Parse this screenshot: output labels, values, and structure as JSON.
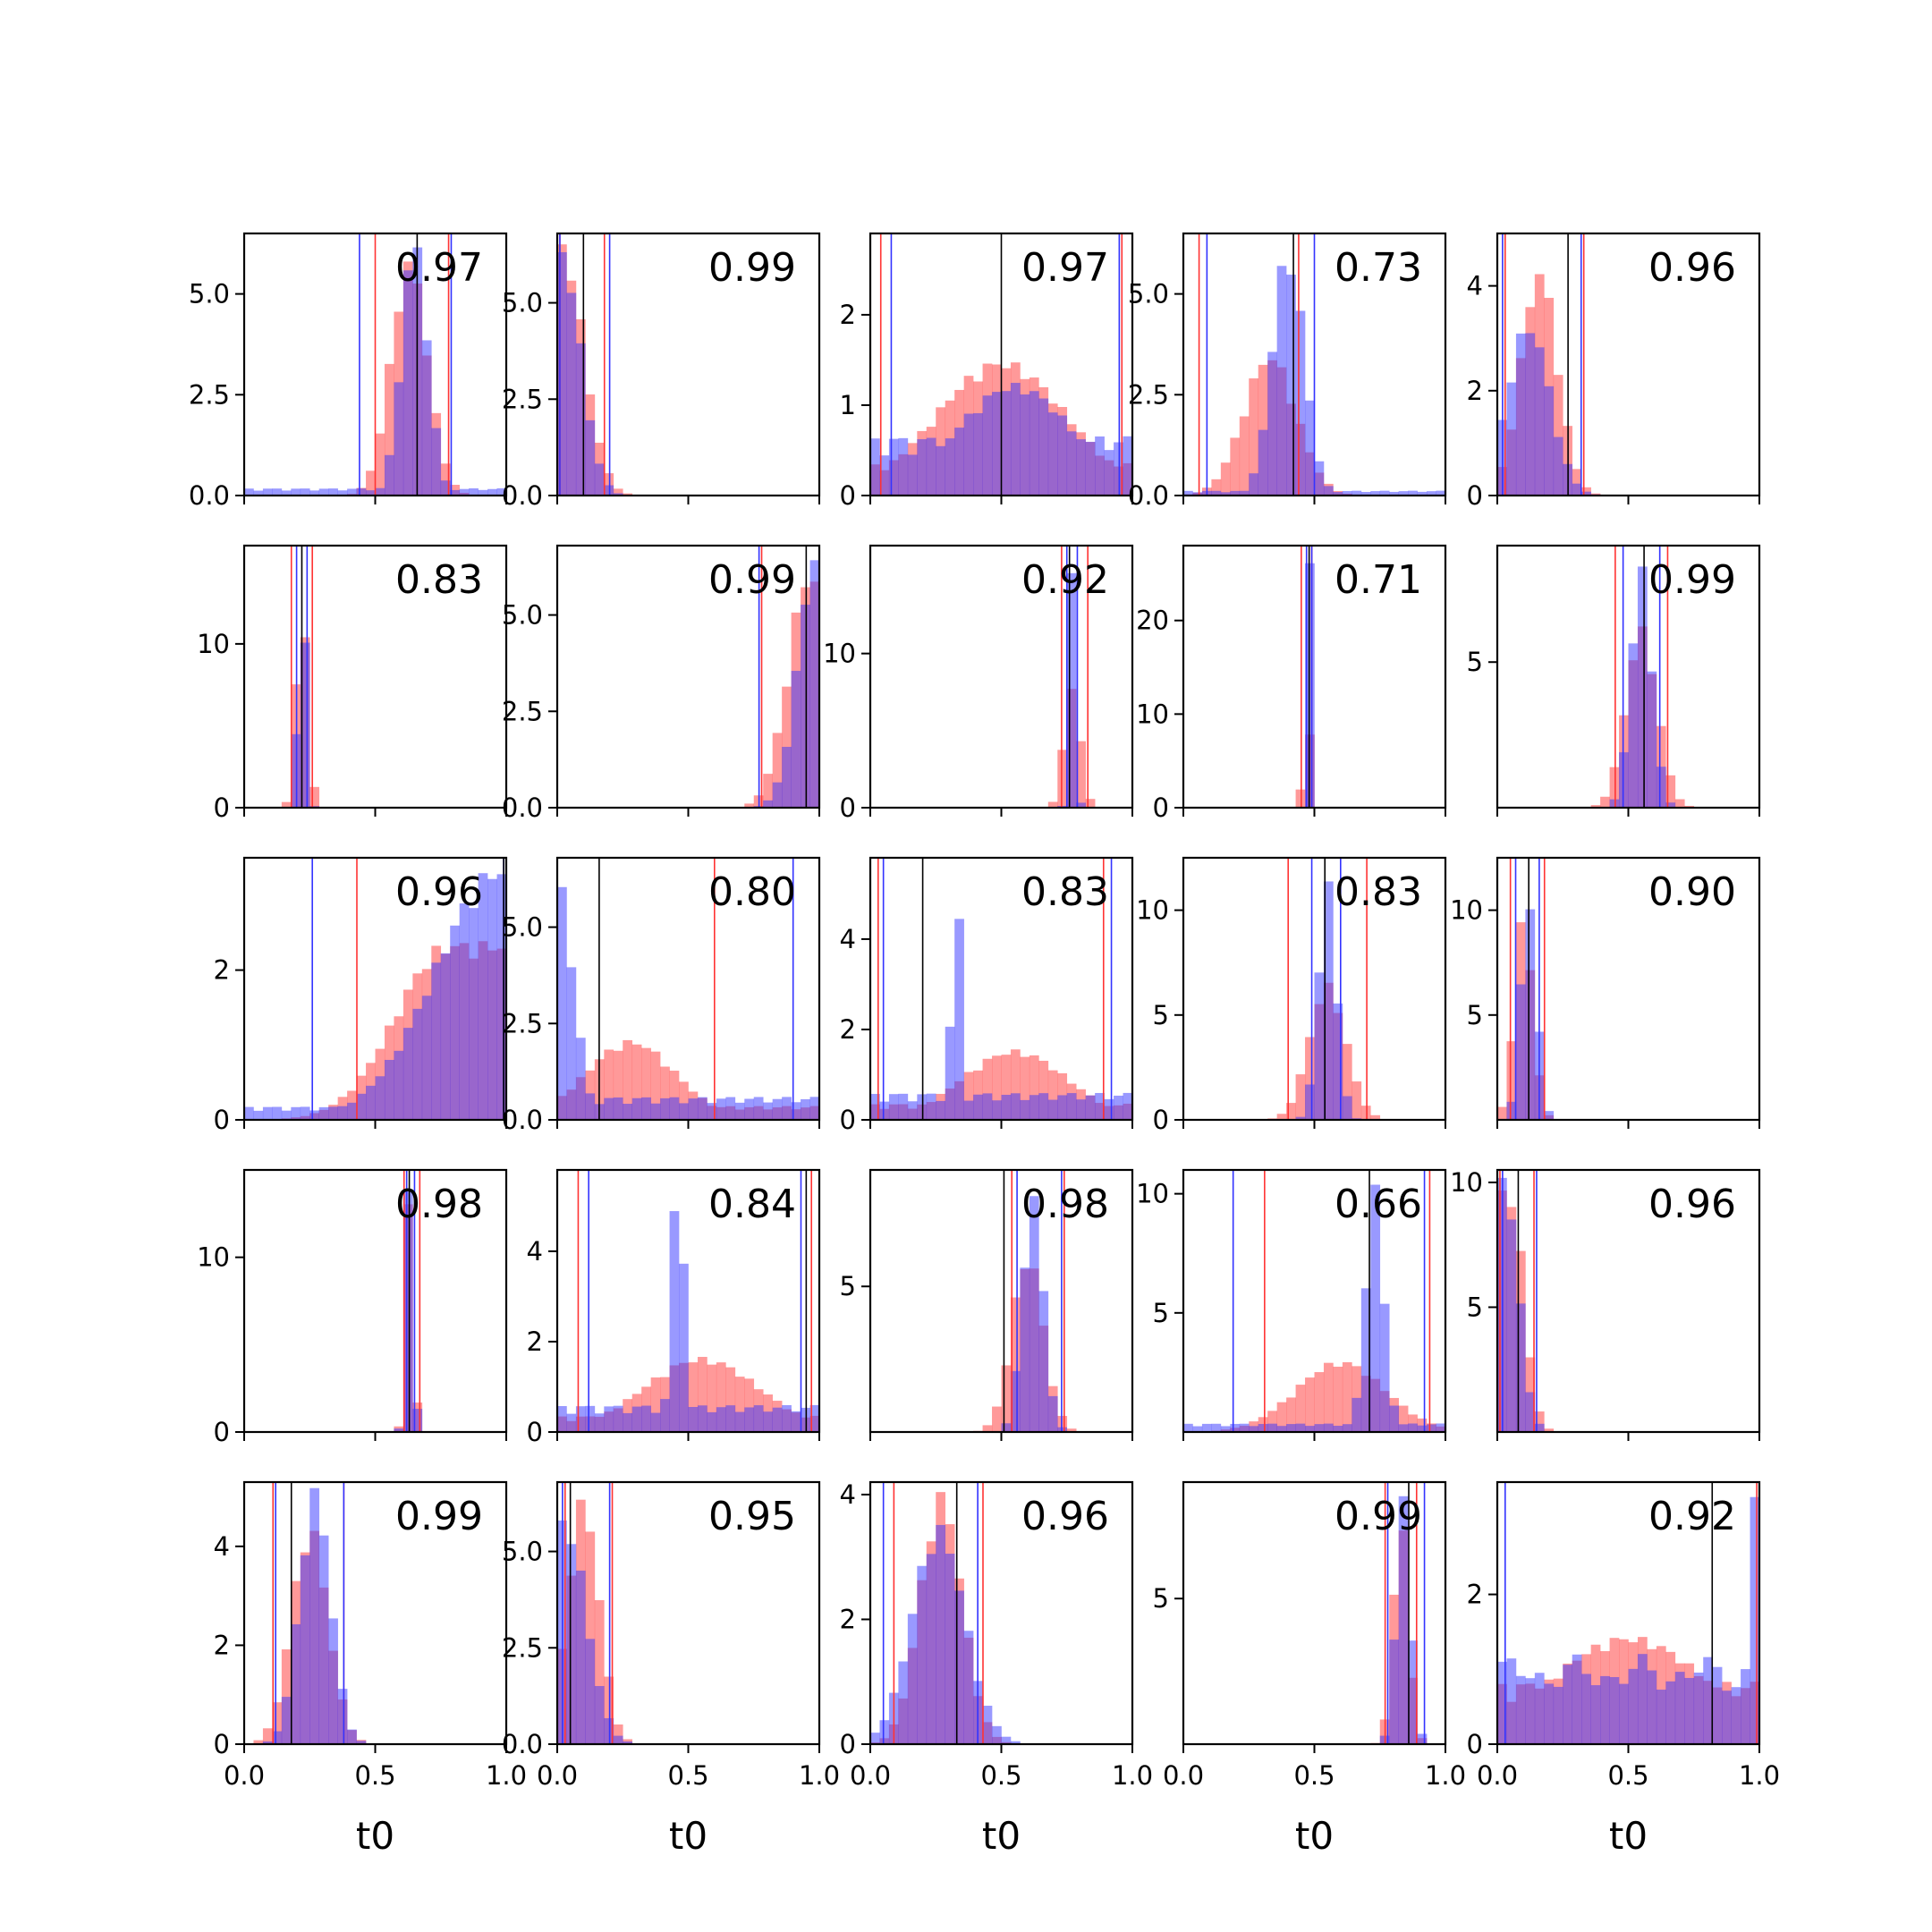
{
  "chart_data": {
    "type": "histogram-grid",
    "rows": 5,
    "cols": 5,
    "xlabel": "t0",
    "xlim": [
      0,
      1
    ],
    "xticks": [
      "0.0",
      "0.5",
      "1.0"
    ],
    "colors": {
      "series_a": "#ff3333",
      "series_b": "#3333ff",
      "overlap": "#7a33c2",
      "marker": "#000000"
    },
    "panels": [
      {
        "label": "0.97",
        "ylim": [
          0,
          6.5
        ],
        "yticks": [
          "0.0",
          "2.5",
          "5.0"
        ],
        "ytick_values": [
          0,
          2.5,
          5
        ],
        "red": {
          "type": "normal",
          "mu": 0.63,
          "sigma": 0.07,
          "peak": 5.7
        },
        "blue": {
          "type": "normal",
          "mu": 0.65,
          "sigma": 0.05,
          "peak": 6.2,
          "floor": 0.15
        },
        "vred": [
          0.5,
          0.78
        ],
        "vblue": [
          0.44,
          0.79
        ],
        "vblack": [
          0.66
        ]
      },
      {
        "label": "0.99",
        "ylim": [
          0,
          6.8
        ],
        "yticks": [
          "0.0",
          "2.5",
          "5.0"
        ],
        "ytick_values": [
          0,
          2.5,
          5
        ],
        "red": {
          "type": "halfnormal",
          "mu": 0.02,
          "sigma": 0.08,
          "peak": 6.4
        },
        "blue": {
          "type": "halfnormal",
          "mu": 0.02,
          "sigma": 0.07,
          "peak": 6.2
        },
        "vred": [
          0.01,
          0.18
        ],
        "vblue": [
          0.01,
          0.2
        ],
        "vblack": [
          0.1
        ]
      },
      {
        "label": "0.97",
        "ylim": [
          0,
          2.9
        ],
        "yticks": [
          "0",
          "1",
          "2"
        ],
        "ytick_values": [
          0,
          1,
          2
        ],
        "red": {
          "type": "normal",
          "mu": 0.5,
          "sigma": 0.25,
          "peak": 1.45,
          "floor": 0.3
        },
        "blue": {
          "type": "normal",
          "mu": 0.55,
          "sigma": 0.22,
          "peak": 1.2,
          "floor": 0.55
        },
        "vred": [
          0.04,
          0.96
        ],
        "vblue": [
          0.08,
          0.95
        ],
        "vblack": [
          0.5
        ]
      },
      {
        "label": "0.73",
        "ylim": [
          0,
          6.5
        ],
        "yticks": [
          "0.0",
          "2.5",
          "5.0"
        ],
        "ytick_values": [
          0,
          2.5,
          5
        ],
        "red": {
          "type": "normal",
          "mu": 0.33,
          "sigma": 0.1,
          "peak": 3.4
        },
        "blue": {
          "type": "normal",
          "mu": 0.4,
          "sigma": 0.06,
          "peak": 6.0,
          "floor": 0.1
        },
        "vred": [
          0.06,
          0.44
        ],
        "vblue": [
          0.09,
          0.5
        ],
        "vblack": [
          0.42
        ]
      },
      {
        "label": "0.96",
        "ylim": [
          0,
          5.0
        ],
        "yticks": [
          "0",
          "2",
          "4"
        ],
        "ytick_values": [
          0,
          2,
          4
        ],
        "red": {
          "type": "normal",
          "mu": 0.16,
          "sigma": 0.07,
          "peak": 4.2
        },
        "blue": {
          "type": "normal",
          "mu": 0.12,
          "sigma": 0.08,
          "peak": 3.2
        },
        "vred": [
          0.03,
          0.33
        ],
        "vblue": [
          0.02,
          0.32
        ],
        "vblack": [
          0.27
        ]
      },
      {
        "label": "0.83",
        "ylim": [
          0,
          16
        ],
        "yticks": [
          "0",
          "10"
        ],
        "ytick_values": [
          0,
          10
        ],
        "red": {
          "type": "normal",
          "mu": 0.22,
          "sigma": 0.022,
          "peak": 13
        },
        "blue": {
          "type": "normal",
          "mu": 0.22,
          "sigma": 0.015,
          "peak": 15
        },
        "vred": [
          0.18,
          0.26
        ],
        "vblue": [
          0.2,
          0.24
        ],
        "vblack": [
          0.22
        ]
      },
      {
        "label": "0.99",
        "ylim": [
          0,
          6.8
        ],
        "yticks": [
          "0.0",
          "2.5",
          "5.0"
        ],
        "ytick_values": [
          0,
          2.5,
          5
        ],
        "red": {
          "type": "rising",
          "mu": 0.96,
          "sigma": 0.08,
          "peak": 5.9
        },
        "blue": {
          "type": "rising",
          "mu": 0.99,
          "sigma": 0.07,
          "peak": 6.5
        },
        "vred": [
          0.78
        ],
        "vblue": [
          0.77
        ],
        "vblack": [
          0.95
        ]
      },
      {
        "label": "0.92",
        "ylim": [
          0,
          17
        ],
        "yticks": [
          "0",
          "10"
        ],
        "ytick_values": [
          0,
          10
        ],
        "red": {
          "type": "normal",
          "mu": 0.77,
          "sigma": 0.03,
          "peak": 8
        },
        "blue": {
          "type": "normal",
          "mu": 0.77,
          "sigma": 0.012,
          "peak": 16
        },
        "vred": [
          0.73,
          0.83
        ],
        "vblue": [
          0.75,
          0.79
        ],
        "vblack": [
          0.76
        ]
      },
      {
        "label": "0.71",
        "ylim": [
          0,
          28
        ],
        "yticks": [
          "0",
          "10",
          "20"
        ],
        "ytick_values": [
          0,
          10,
          20
        ],
        "red": {
          "type": "normal",
          "mu": 0.47,
          "sigma": 0.012,
          "peak": 13
        },
        "blue": {
          "type": "normal",
          "mu": 0.48,
          "sigma": 0.008,
          "peak": 27
        },
        "vred": [
          0.45,
          0.49
        ],
        "vblue": [
          0.47,
          0.49
        ],
        "vblack": [
          0.48
        ]
      },
      {
        "label": "0.99",
        "ylim": [
          0,
          9
        ],
        "yticks": [
          "5"
        ],
        "ytick_values": [
          5
        ],
        "red": {
          "type": "normal",
          "mu": 0.55,
          "sigma": 0.06,
          "peak": 6.0
        },
        "blue": {
          "type": "normal",
          "mu": 0.55,
          "sigma": 0.04,
          "peak": 8.0
        },
        "vred": [
          0.45,
          0.65
        ],
        "vblue": [
          0.48,
          0.62
        ],
        "vblack": [
          0.56
        ]
      },
      {
        "label": "0.96",
        "ylim": [
          0,
          3.5
        ],
        "yticks": [
          "0",
          "2"
        ],
        "ytick_values": [
          0,
          2
        ],
        "red": {
          "type": "rising",
          "mu": 0.78,
          "sigma": 0.2,
          "peak": 2.3
        },
        "blue": {
          "type": "rising",
          "mu": 0.98,
          "sigma": 0.25,
          "peak": 3.3,
          "floor": 0.15
        },
        "vred": [
          0.43
        ],
        "vblue": [
          0.26,
          0.99
        ],
        "vblack": [
          0.99
        ]
      },
      {
        "label": "0.80",
        "ylim": [
          0,
          6.8
        ],
        "yticks": [
          "0.0",
          "2.5",
          "5.0"
        ],
        "ytick_values": [
          0,
          2.5,
          5
        ],
        "red": {
          "type": "normal",
          "mu": 0.28,
          "sigma": 0.17,
          "peak": 2.0,
          "floor": 0.3
        },
        "blue": {
          "type": "halfnormal",
          "mu": 0.0,
          "sigma": 0.06,
          "peak": 6.2,
          "floor": 0.5
        },
        "vred": [
          0.6
        ],
        "vblue": [
          0.9
        ],
        "vblack": [
          0.16
        ]
      },
      {
        "label": "0.83",
        "ylim": [
          0,
          5.8
        ],
        "yticks": [
          "0",
          "2",
          "4"
        ],
        "ytick_values": [
          0,
          2,
          4
        ],
        "red": {
          "type": "normal",
          "mu": 0.55,
          "sigma": 0.2,
          "peak": 1.5,
          "floor": 0.3
        },
        "blue": {
          "type": "normal",
          "mu": 0.33,
          "sigma": 0.02,
          "peak": 5.0,
          "floor": 0.5
        },
        "vred": [
          0.03,
          0.89
        ],
        "vblue": [
          0.05,
          0.92
        ],
        "vblack": [
          0.2
        ]
      },
      {
        "label": "0.83",
        "ylim": [
          0,
          12.5
        ],
        "yticks": [
          "0",
          "5",
          "10"
        ],
        "ytick_values": [
          0,
          5,
          10
        ],
        "red": {
          "type": "normal",
          "mu": 0.55,
          "sigma": 0.07,
          "peak": 6.3
        },
        "blue": {
          "type": "normal",
          "mu": 0.55,
          "sigma": 0.035,
          "peak": 11
        },
        "vred": [
          0.4,
          0.7
        ],
        "vblue": [
          0.49,
          0.6
        ],
        "vblack": [
          0.54
        ]
      },
      {
        "label": "0.90",
        "ylim": [
          0,
          12.5
        ],
        "yticks": [
          "5",
          "10"
        ],
        "ytick_values": [
          5,
          10
        ],
        "red": {
          "type": "normal",
          "mu": 0.1,
          "sigma": 0.035,
          "peak": 9.5
        },
        "blue": {
          "type": "normal",
          "mu": 0.12,
          "sigma": 0.03,
          "peak": 10.5
        },
        "vred": [
          0.05,
          0.18
        ],
        "vblue": [
          0.07,
          0.16
        ],
        "vblack": [
          0.12
        ]
      },
      {
        "label": "0.98",
        "ylim": [
          0,
          15
        ],
        "yticks": [
          "0",
          "10"
        ],
        "ytick_values": [
          0,
          10
        ],
        "red": {
          "type": "normal",
          "mu": 0.63,
          "sigma": 0.015,
          "peak": 13.5
        },
        "blue": {
          "type": "normal",
          "mu": 0.63,
          "sigma": 0.014,
          "peak": 14.5
        },
        "vred": [
          0.61,
          0.67
        ],
        "vblue": [
          0.62,
          0.65
        ],
        "vblack": [
          0.63
        ]
      },
      {
        "label": "0.84",
        "ylim": [
          0,
          5.8
        ],
        "yticks": [
          "0",
          "2",
          "4"
        ],
        "ytick_values": [
          0,
          2,
          4
        ],
        "red": {
          "type": "normal",
          "mu": 0.55,
          "sigma": 0.22,
          "peak": 1.6,
          "floor": 0.3
        },
        "blue": {
          "type": "normal",
          "mu": 0.46,
          "sigma": 0.025,
          "peak": 5.5,
          "floor": 0.5
        },
        "vred": [
          0.08,
          0.97
        ],
        "vblue": [
          0.12,
          0.93
        ],
        "vblack": [
          0.95
        ]
      },
      {
        "label": "0.98",
        "ylim": [
          0,
          9
        ],
        "yticks": [
          "5"
        ],
        "ytick_values": [
          5
        ],
        "red": {
          "type": "normal",
          "mu": 0.6,
          "sigma": 0.06,
          "peak": 6.0
        },
        "blue": {
          "type": "normal",
          "mu": 0.62,
          "sigma": 0.04,
          "peak": 8.0
        },
        "vred": [
          0.54,
          0.74
        ],
        "vblue": [
          0.56,
          0.73
        ],
        "vblack": [
          0.51
        ]
      },
      {
        "label": "0.66",
        "ylim": [
          0,
          11
        ],
        "yticks": [
          "5",
          "10"
        ],
        "ytick_values": [
          5,
          10
        ],
        "red": {
          "type": "normal",
          "mu": 0.6,
          "sigma": 0.17,
          "peak": 2.9
        },
        "blue": {
          "type": "normal",
          "mu": 0.73,
          "sigma": 0.035,
          "peak": 10.0,
          "floor": 0.3
        },
        "vred": [
          0.31,
          0.94
        ],
        "vblue": [
          0.19,
          0.92
        ],
        "vblack": [
          0.71
        ]
      },
      {
        "label": "0.96",
        "ylim": [
          0,
          10.5
        ],
        "yticks": [
          "5",
          "10"
        ],
        "ytick_values": [
          5,
          10
        ],
        "red": {
          "type": "halfnormal",
          "mu": 0.05,
          "sigma": 0.05,
          "peak": 9.5
        },
        "blue": {
          "type": "halfnormal",
          "mu": 0.03,
          "sigma": 0.05,
          "peak": 10.0
        },
        "vred": [
          0.01,
          0.14
        ],
        "vblue": [
          0.02,
          0.15
        ],
        "vblack": [
          0.08
        ]
      },
      {
        "label": "0.99",
        "ylim": [
          0,
          5.3
        ],
        "yticks": [
          "0",
          "2",
          "4"
        ],
        "ytick_values": [
          0,
          2,
          4
        ],
        "red": {
          "type": "normal",
          "mu": 0.25,
          "sigma": 0.07,
          "peak": 4.3
        },
        "blue": {
          "type": "normal",
          "mu": 0.27,
          "sigma": 0.06,
          "peak": 5.0
        },
        "vred": [
          0.11,
          0.38
        ],
        "vblue": [
          0.12,
          0.38
        ],
        "vblack": [
          0.18
        ]
      },
      {
        "label": "0.95",
        "ylim": [
          0,
          6.8
        ],
        "yticks": [
          "0.0",
          "2.5",
          "5.0"
        ],
        "ytick_values": [
          0,
          2.5,
          5
        ],
        "red": {
          "type": "normal",
          "mu": 0.1,
          "sigma": 0.06,
          "peak": 6.2
        },
        "blue": {
          "type": "halfnormal",
          "mu": 0.03,
          "sigma": 0.08,
          "peak": 5.7
        },
        "vred": [
          0.03,
          0.21
        ],
        "vblue": [
          0.02,
          0.2
        ],
        "vblack": [
          0.05
        ]
      },
      {
        "label": "0.96",
        "ylim": [
          0,
          4.2
        ],
        "yticks": [
          "0",
          "2",
          "4"
        ],
        "ytick_values": [
          0,
          2,
          4
        ],
        "red": {
          "type": "normal",
          "mu": 0.27,
          "sigma": 0.08,
          "peak": 3.9
        },
        "blue": {
          "type": "normal",
          "mu": 0.26,
          "sigma": 0.1,
          "peak": 3.4
        },
        "vred": [
          0.09,
          0.43
        ],
        "vblue": [
          0.05,
          0.41
        ],
        "vblack": [
          0.33
        ]
      },
      {
        "label": "0.99",
        "ylim": [
          0,
          9
        ],
        "yticks": [
          "5"
        ],
        "ytick_values": [
          5
        ],
        "red": {
          "type": "normal",
          "mu": 0.83,
          "sigma": 0.03,
          "peak": 7.5
        },
        "blue": {
          "type": "normal",
          "mu": 0.84,
          "sigma": 0.028,
          "peak": 8.3
        },
        "vred": [
          0.77,
          0.89
        ],
        "vblue": [
          0.78,
          0.92
        ],
        "vblack": [
          0.86
        ]
      },
      {
        "label": "0.92",
        "ylim": [
          0,
          3.5
        ],
        "yticks": [
          "0",
          "2"
        ],
        "ytick_values": [
          0,
          2
        ],
        "red": {
          "type": "normal",
          "mu": 0.5,
          "sigma": 0.3,
          "peak": 1.4,
          "floor": 0.7
        },
        "blue": {
          "type": "flat",
          "level": 1.1,
          "spike": 3.3
        },
        "vred": [
          0.99
        ],
        "vblue": [
          0.03
        ],
        "vblack": [
          0.82
        ]
      }
    ]
  }
}
